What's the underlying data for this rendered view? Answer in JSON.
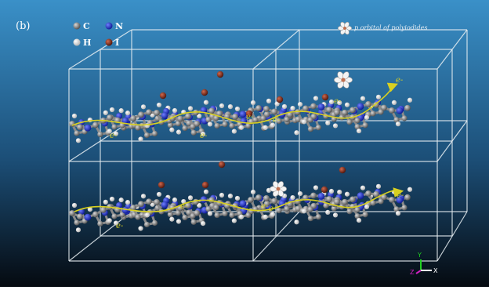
{
  "panel_label": "(b)",
  "legend": {
    "items": [
      {
        "symbol": "C",
        "color": "#7a7a7a"
      },
      {
        "symbol": "N",
        "color": "#1a2fd0"
      },
      {
        "symbol": "H",
        "color": "#f2f2f2"
      },
      {
        "symbol": "I",
        "color": "#8a2a18"
      }
    ],
    "orbital_label": "p orbital of polyiodides"
  },
  "electron_label": "e-",
  "axes": {
    "y": "Y",
    "x": "X",
    "z": "Z"
  },
  "colors": {
    "background_top": "#3a90c8",
    "background_bottom": "#050a10",
    "cell_lines": "#e8eef2",
    "carbon": "#7a7a7a",
    "nitrogen": "#1a2fd0",
    "hydrogen": "#f2f2f2",
    "iodine": "#8a2a18",
    "electron_path": "#d8d020"
  }
}
